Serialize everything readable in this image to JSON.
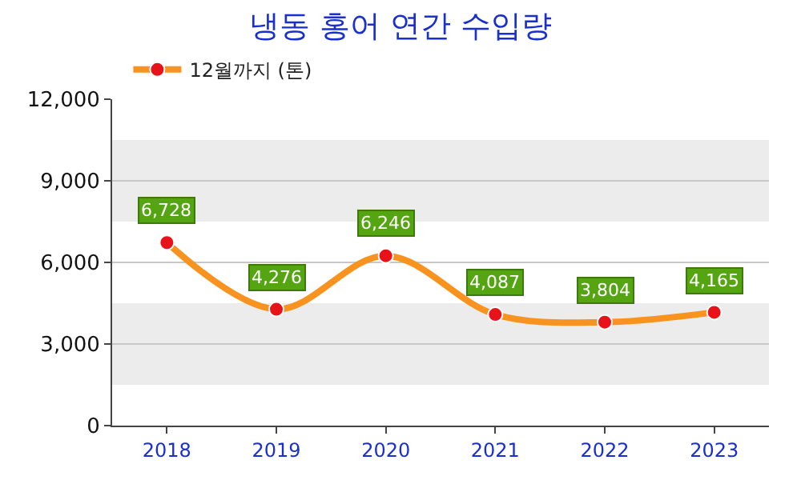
{
  "chart_data": {
    "type": "line",
    "title": "냉동 홍어 연간 수입량",
    "categories": [
      "2018",
      "2019",
      "2020",
      "2021",
      "2022",
      "2023"
    ],
    "series": [
      {
        "name": "12월까지 (톤)",
        "color": "#f7931e",
        "values": [
          6728,
          4276,
          6246,
          4087,
          3804,
          4165
        ],
        "value_labels": [
          "6,728",
          "4,276",
          "6,246",
          "4,087",
          "3,804",
          "4,165"
        ]
      }
    ],
    "ylim": [
      0,
      12000
    ],
    "yticks": [
      {
        "value": 0,
        "label": "0"
      },
      {
        "value": 3000,
        "label": "3,000"
      },
      {
        "value": 6000,
        "label": "6,000"
      },
      {
        "value": 9000,
        "label": "9,000"
      },
      {
        "value": 12000,
        "label": "12,000"
      }
    ],
    "bands": [
      {
        "axis": "y",
        "from": 1500,
        "to": 4500,
        "color": "#ececec"
      },
      {
        "axis": "y",
        "from": 7500,
        "to": 10500,
        "color": "#ececec"
      }
    ],
    "grid": "y",
    "legend": "top left",
    "marker": "circle",
    "line_style": "solid"
  }
}
